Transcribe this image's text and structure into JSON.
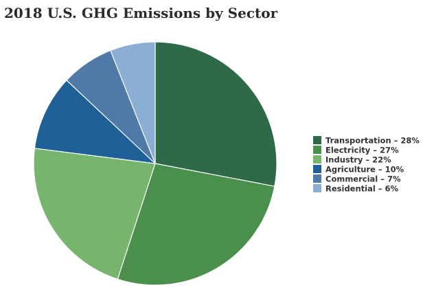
{
  "chart_data": {
    "type": "pie",
    "title": "2018 U.S. GHG Emissions by Sector",
    "categories": [
      "Transportation – 28%",
      "Electricity – 27%",
      "Industry – 22%",
      "Agriculture – 10%",
      "Commercial – 7%",
      "Residential – 6%"
    ],
    "values": [
      28,
      27,
      22,
      10,
      7,
      6
    ],
    "colors": [
      "#2e6a47",
      "#4a8f4c",
      "#77b56e",
      "#1f6096",
      "#4f7aa8",
      "#8aaed4"
    ]
  }
}
